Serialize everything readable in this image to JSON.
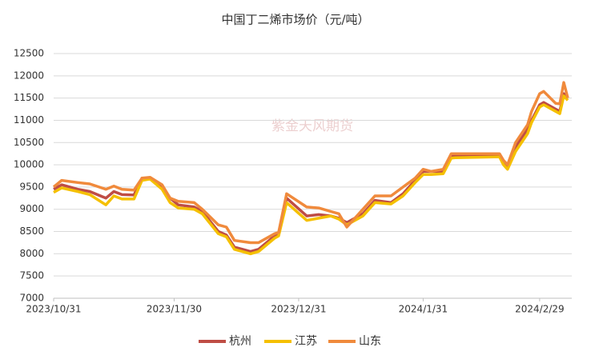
{
  "chart_data": {
    "type": "line",
    "title": "中国丁二烯市场价（元/吨）",
    "watermark": "紫金天风期货",
    "x": [
      "2023-10-31",
      "2023-11-02",
      "2023-11-06",
      "2023-11-09",
      "2023-11-13",
      "2023-11-15",
      "2023-11-17",
      "2023-11-20",
      "2023-11-22",
      "2023-11-24",
      "2023-11-27",
      "2023-11-29",
      "2023-12-01",
      "2023-12-05",
      "2023-12-07",
      "2023-12-11",
      "2023-12-13",
      "2023-12-15",
      "2023-12-19",
      "2023-12-21",
      "2023-12-25",
      "2023-12-26",
      "2023-12-28",
      "2024-01-02",
      "2024-01-05",
      "2024-01-08",
      "2024-01-10",
      "2024-01-12",
      "2024-01-16",
      "2024-01-19",
      "2024-01-23",
      "2024-01-26",
      "2024-01-29",
      "2024-01-31",
      "2024-02-02",
      "2024-02-05",
      "2024-02-07",
      "2024-02-08",
      "2024-02-19",
      "2024-02-20",
      "2024-02-21",
      "2024-02-23",
      "2024-02-26",
      "2024-02-27",
      "2024-02-29",
      "2024-03-01",
      "2024-03-04",
      "2024-03-05",
      "2024-03-06",
      "2024-03-07"
    ],
    "series": [
      {
        "name": "杭州",
        "color": "#bf4d45",
        "values": [
          9450,
          9550,
          9450,
          9400,
          9250,
          9400,
          9330,
          9320,
          9700,
          9700,
          9500,
          9250,
          9100,
          9050,
          8950,
          8500,
          8420,
          8150,
          8050,
          8100,
          8400,
          8450,
          9250,
          8850,
          8880,
          8850,
          8800,
          8700,
          8900,
          9200,
          9150,
          9350,
          9650,
          9850,
          9850,
          9850,
          10200,
          10220,
          10230,
          10050,
          9950,
          10400,
          10800,
          11000,
          11350,
          11400,
          11250,
          11200,
          11600,
          11500
        ]
      },
      {
        "name": "江苏",
        "color": "#f5c000",
        "values": [
          9380,
          9480,
          9400,
          9330,
          9100,
          9300,
          9230,
          9230,
          9650,
          9680,
          9450,
          9150,
          9030,
          9000,
          8900,
          8450,
          8380,
          8100,
          8000,
          8050,
          8350,
          8400,
          9150,
          8750,
          8800,
          8850,
          8780,
          8650,
          8850,
          9150,
          9120,
          9300,
          9600,
          9780,
          9780,
          9800,
          10150,
          10160,
          10180,
          10000,
          9900,
          10300,
          10700,
          10950,
          11300,
          11350,
          11200,
          11150,
          11550,
          11450
        ]
      },
      {
        "name": "山东",
        "color": "#f08a3c",
        "values": [
          9500,
          9650,
          9600,
          9570,
          9450,
          9520,
          9450,
          9430,
          9700,
          9720,
          9550,
          9250,
          9180,
          9150,
          9000,
          8650,
          8600,
          8300,
          8250,
          8250,
          8450,
          8480,
          9350,
          9050,
          9030,
          8950,
          8900,
          8600,
          9000,
          9300,
          9300,
          9500,
          9700,
          9900,
          9850,
          9900,
          10250,
          10250,
          10250,
          10100,
          10000,
          10500,
          10900,
          11200,
          11600,
          11650,
          11380,
          11370,
          11850,
          11500
        ]
      }
    ],
    "xlim": [
      "2023-10-31",
      "2024-03-08"
    ],
    "xticks": [
      {
        "value": "2023-10-31",
        "label": "2023/10/31"
      },
      {
        "value": "2023-11-30",
        "label": "2023/11/30"
      },
      {
        "value": "2023-12-31",
        "label": "2023/12/31"
      },
      {
        "value": "2024-01-31",
        "label": "2024/1/31"
      },
      {
        "value": "2024-02-29",
        "label": "2024/2/29"
      }
    ],
    "ylim": [
      7000,
      12500
    ],
    "yticks": [
      7000,
      7500,
      8000,
      8500,
      9000,
      9500,
      10000,
      10500,
      11000,
      11500,
      12000,
      12500
    ],
    "grid": true,
    "legend": "bottom"
  }
}
